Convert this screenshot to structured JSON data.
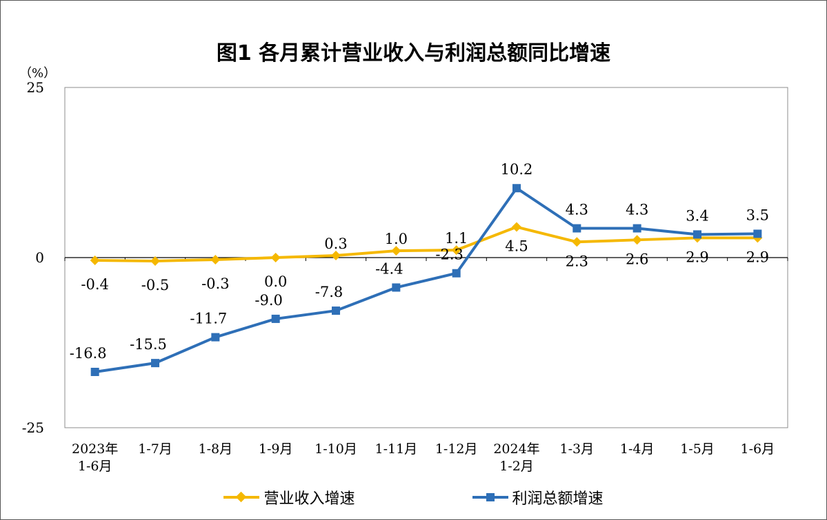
{
  "title": "图1  各月累计营业收入与利润总额同比增速",
  "unit_label": "（%）",
  "chart_data": {
    "type": "line",
    "title": "图1  各月累计营业收入与利润总额同比增速",
    "ylabel": "（%）",
    "ylim": [
      -25,
      25
    ],
    "yticks": [
      25,
      0,
      -25
    ],
    "grid": false,
    "legend_position": "bottom",
    "categories": [
      [
        "2023年",
        "1-6月"
      ],
      [
        "1-7月"
      ],
      [
        "1-8月"
      ],
      [
        "1-9月"
      ],
      [
        "1-10月"
      ],
      [
        "1-11月"
      ],
      [
        "1-12月"
      ],
      [
        "2024年",
        "1-2月"
      ],
      [
        "1-3月"
      ],
      [
        "1-4月"
      ],
      [
        "1-5月"
      ],
      [
        "1-6月"
      ]
    ],
    "series": [
      {
        "name": "营业收入增速",
        "color": "#F5B800",
        "marker": "diamond",
        "values": [
          -0.4,
          -0.5,
          -0.3,
          0.0,
          0.3,
          1.0,
          1.1,
          4.5,
          2.3,
          2.6,
          2.9,
          2.9
        ],
        "labels": [
          "-0.4",
          "-0.5",
          "-0.3",
          "0.0",
          "0.3",
          "1.0",
          "1.1",
          "4.5",
          "2.3",
          "2.6",
          "2.9",
          "2.9"
        ]
      },
      {
        "name": "利润总额增速",
        "color": "#2E6FB7",
        "marker": "square",
        "values": [
          -16.8,
          -15.5,
          -11.7,
          -9.0,
          -7.8,
          -4.4,
          -2.3,
          10.2,
          4.3,
          4.3,
          3.4,
          3.5
        ],
        "labels": [
          "-16.8",
          "-15.5",
          "-11.7",
          "-9.0",
          "-7.8",
          "-4.4",
          "-2.3",
          "10.2",
          "4.3",
          "4.3",
          "3.4",
          "3.5"
        ]
      }
    ]
  }
}
